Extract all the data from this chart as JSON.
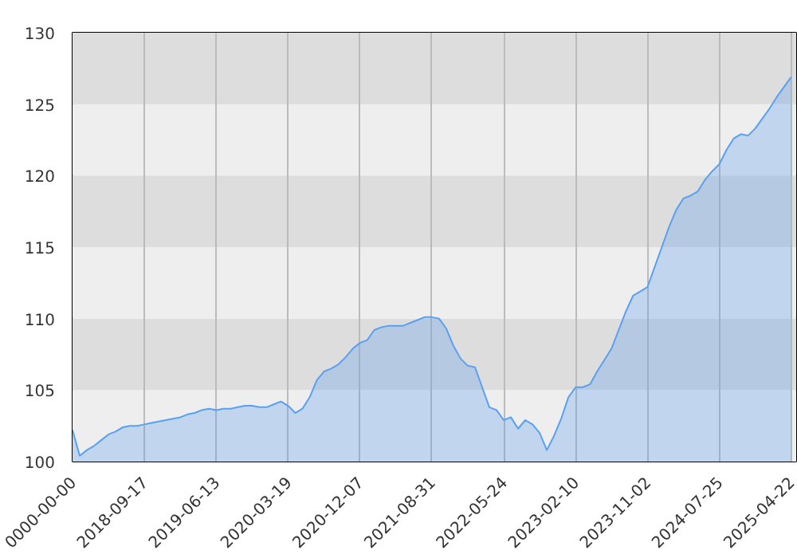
{
  "chart_data": {
    "type": "area",
    "categories": [
      "0000-00-00",
      null,
      null,
      null,
      null,
      null,
      null,
      null,
      null,
      null,
      "2018-09-17",
      null,
      null,
      null,
      null,
      null,
      null,
      null,
      null,
      null,
      "2019-06-13",
      null,
      null,
      null,
      null,
      null,
      null,
      null,
      null,
      null,
      "2020-03-19",
      null,
      null,
      null,
      null,
      null,
      null,
      null,
      null,
      null,
      "2020-12-07",
      null,
      null,
      null,
      null,
      null,
      null,
      null,
      null,
      null,
      "2021-08-31",
      null,
      null,
      null,
      null,
      null,
      null,
      null,
      null,
      null,
      "2022-05-24",
      null,
      null,
      null,
      null,
      null,
      null,
      null,
      null,
      null,
      "2023-02-10",
      null,
      null,
      null,
      null,
      null,
      null,
      null,
      null,
      null,
      "2023-11-02",
      null,
      null,
      null,
      null,
      null,
      null,
      null,
      null,
      null,
      "2024-07-25",
      null,
      null,
      null,
      null,
      null,
      null,
      null,
      null,
      null,
      "2025-04-22"
    ],
    "series": [
      {
        "color": "#5aa0f0",
        "values": [
          102.2,
          100.4,
          100.8,
          101.1,
          101.5,
          101.9,
          102.1,
          102.4,
          102.5,
          102.5,
          102.6,
          102.7,
          102.8,
          102.9,
          103.0,
          103.1,
          103.3,
          103.4,
          103.6,
          103.7,
          103.6,
          103.7,
          103.7,
          103.8,
          103.9,
          103.9,
          103.8,
          103.8,
          104.0,
          104.2,
          103.9,
          103.4,
          103.7,
          104.5,
          105.7,
          106.3,
          106.5,
          106.8,
          107.3,
          107.9,
          108.3,
          108.5,
          109.2,
          109.4,
          109.5,
          109.5,
          109.5,
          109.7,
          109.9,
          110.1,
          110.1,
          110.0,
          109.3,
          108.1,
          107.2,
          106.7,
          106.6,
          105.2,
          103.8,
          103.6,
          102.9,
          103.1,
          102.3,
          102.9,
          102.6,
          102.0,
          100.8,
          101.8,
          103.0,
          104.5,
          105.2,
          105.2,
          105.4,
          106.3,
          107.1,
          107.9,
          109.2,
          110.5,
          111.6,
          111.9,
          112.2,
          113.6,
          115.0,
          116.4,
          117.6,
          118.4,
          118.6,
          118.9,
          119.7,
          120.3,
          120.8,
          121.8,
          122.6,
          122.9,
          122.8,
          123.3,
          124.0,
          124.7,
          125.5,
          126.2,
          126.9
        ]
      }
    ],
    "ylim": [
      100,
      130
    ],
    "yticks": [
      100,
      105,
      110,
      115,
      120,
      125,
      130
    ],
    "bands": [
      {
        "axis": "y",
        "from": 100,
        "to": 105,
        "color": "#eeeeee"
      },
      {
        "axis": "y",
        "from": 105,
        "to": 110,
        "color": "#dddddd"
      },
      {
        "axis": "y",
        "from": 110,
        "to": 115,
        "color": "#eeeeee"
      },
      {
        "axis": "y",
        "from": 115,
        "to": 120,
        "color": "#dddddd"
      },
      {
        "axis": "y",
        "from": 120,
        "to": 125,
        "color": "#eeeeee"
      },
      {
        "axis": "y",
        "from": 125,
        "to": 130,
        "color": "#dddddd"
      }
    ],
    "grid": "x"
  }
}
